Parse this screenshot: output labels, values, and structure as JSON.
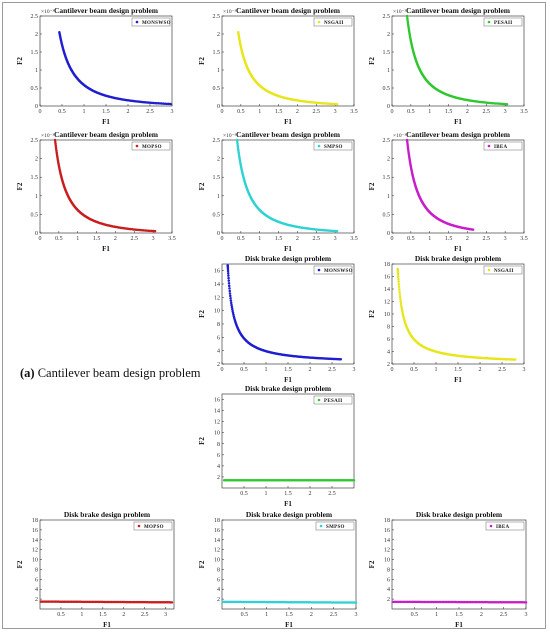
{
  "caption": {
    "label": "(a)",
    "text": " Cantilever beam design problem"
  },
  "chart_data": [
    {
      "id": "cb-monswso",
      "type": "scatter",
      "title": "Cantilever beam design problem",
      "xlabel": "F1",
      "ylabel": "F2",
      "xlim": [
        0,
        3
      ],
      "ylim": [
        0,
        0.0025
      ],
      "xticks": [
        "0",
        "0.5",
        "1",
        "1.5",
        "2",
        "2.5",
        "3"
      ],
      "yticks": [
        "0",
        "0.5",
        "1",
        "1.5",
        "2",
        "2.5"
      ],
      "y_exponent": "×10⁻³",
      "legend_position": "top-right",
      "series": [
        {
          "name": "MONSWSO",
          "color": "#1f1fd0",
          "curve": "hyperbolic",
          "x_range": [
            0.44,
            3.05
          ],
          "y_at_min": 0.00205,
          "y_at_max": 5e-05
        }
      ]
    },
    {
      "id": "cb-nsgaii",
      "type": "scatter",
      "title": "Cantilever beam design problem",
      "xlabel": "F1",
      "ylabel": "F2",
      "xlim": [
        0,
        3.5
      ],
      "ylim": [
        0,
        0.0025
      ],
      "xticks": [
        "0",
        "0.5",
        "1",
        "1.5",
        "2",
        "2.5",
        "3",
        "3.5"
      ],
      "yticks": [
        "0",
        "0.5",
        "1",
        "1.5",
        "2",
        "2.5"
      ],
      "y_exponent": "×10⁻³",
      "legend_position": "top-right",
      "series": [
        {
          "name": "NSGAII",
          "color": "#e6e61a",
          "curve": "hyperbolic",
          "x_range": [
            0.43,
            3.05
          ],
          "y_at_min": 0.00205,
          "y_at_max": 5e-05
        }
      ]
    },
    {
      "id": "cb-pesaii",
      "type": "scatter",
      "title": "Cantilever beam design problem",
      "xlabel": "F1",
      "ylabel": "F2",
      "xlim": [
        0,
        3.5
      ],
      "ylim": [
        0,
        0.0025
      ],
      "xticks": [
        "0",
        "0.5",
        "1",
        "1.5",
        "2",
        "2.5",
        "3",
        "3.5"
      ],
      "yticks": [
        "0",
        "0.5",
        "1",
        "1.5",
        "2",
        "2.5"
      ],
      "y_exponent": "×10⁻³",
      "legend_position": "top-right",
      "series": [
        {
          "name": "PESAII",
          "color": "#2fc82f",
          "curve": "hyperbolic",
          "x_range": [
            0.4,
            3.05
          ],
          "y_at_min": 0.0025,
          "y_at_max": 5e-05
        }
      ]
    },
    {
      "id": "cb-mopso",
      "type": "scatter",
      "title": "Cantilever beam design problem",
      "xlabel": "F1",
      "ylabel": "F2",
      "xlim": [
        0,
        3.5
      ],
      "ylim": [
        0,
        0.0025
      ],
      "xticks": [
        "0",
        "0.5",
        "1",
        "1.5",
        "2",
        "2.5",
        "3",
        "3.5"
      ],
      "yticks": [
        "0",
        "0.5",
        "1",
        "1.5",
        "2",
        "2.5"
      ],
      "y_exponent": "×10⁻³",
      "legend_position": "top-right",
      "series": [
        {
          "name": "MOPSO",
          "color": "#c81e1e",
          "curve": "hyperbolic",
          "x_range": [
            0.4,
            3.05
          ],
          "y_at_min": 0.0025,
          "y_at_max": 5e-05
        }
      ]
    },
    {
      "id": "cb-smpso",
      "type": "scatter",
      "title": "Cantilever beam design problem",
      "xlabel": "F1",
      "ylabel": "F2",
      "xlim": [
        0,
        3.5
      ],
      "ylim": [
        0,
        0.0025
      ],
      "xticks": [
        "0",
        "0.5",
        "1",
        "1.5",
        "2",
        "2.5",
        "3",
        "3.5"
      ],
      "yticks": [
        "0",
        "0.5",
        "1",
        "1.5",
        "2",
        "2.5"
      ],
      "y_exponent": "×10⁻³",
      "legend_position": "top-right",
      "series": [
        {
          "name": "SMPSO",
          "color": "#2fd2d2",
          "curve": "hyperbolic",
          "x_range": [
            0.4,
            3.05
          ],
          "y_at_min": 0.0025,
          "y_at_max": 5e-05
        }
      ]
    },
    {
      "id": "cb-ibea",
      "type": "scatter",
      "title": "Cantilever beam design problem",
      "xlabel": "F1",
      "ylabel": "F2",
      "xlim": [
        0,
        3.5
      ],
      "ylim": [
        0,
        0.0025
      ],
      "xticks": [
        "0",
        "0.5",
        "1",
        "1.5",
        "2",
        "2.5",
        "3",
        "3.5"
      ],
      "yticks": [
        "0",
        "0.5",
        "1",
        "1.5",
        "2",
        "2.5"
      ],
      "y_exponent": "×10⁻³",
      "legend_position": "top-right",
      "series": [
        {
          "name": "IBEA",
          "color": "#c81ec8",
          "curve": "hyperbolic",
          "x_range": [
            0.4,
            2.15
          ],
          "y_at_min": 0.0025,
          "y_at_max": 9e-05
        }
      ]
    },
    {
      "id": "db-monswso",
      "type": "scatter",
      "title": "Disk brake design problem",
      "xlabel": "F1",
      "ylabel": "F2",
      "xlim": [
        0,
        3
      ],
      "ylim": [
        2,
        17
      ],
      "xticks": [
        "0",
        "0.5",
        "1",
        "1.5",
        "2",
        "2.5",
        "3"
      ],
      "yticks": [
        "2",
        "4",
        "6",
        "8",
        "10",
        "12",
        "14",
        "16"
      ],
      "legend_position": "top-right",
      "series": [
        {
          "name": "MONSWSO",
          "color": "#1f1fd0",
          "curve": "disk",
          "x_range": [
            0.13,
            2.7
          ],
          "y_at_min": 16.8,
          "y_at_max": 2.1
        }
      ]
    },
    {
      "id": "db-nsgaii",
      "type": "scatter",
      "title": "Disk brake design problem",
      "xlabel": "F1",
      "ylabel": "F2",
      "xlim": [
        0,
        3
      ],
      "ylim": [
        2,
        18
      ],
      "xticks": [
        "0",
        "0.5",
        "1",
        "1.5",
        "2",
        "2.5",
        "3"
      ],
      "yticks": [
        "2",
        "4",
        "6",
        "8",
        "10",
        "12",
        "14",
        "16",
        "18"
      ],
      "legend_position": "top-right",
      "series": [
        {
          "name": "NSGAII",
          "color": "#e6e61a",
          "curve": "disk",
          "x_range": [
            0.13,
            2.8
          ],
          "y_at_min": 17.2,
          "y_at_max": 2.05
        }
      ]
    },
    {
      "id": "db-pesaii",
      "type": "scatter",
      "title": "Disk brake design problem",
      "xlabel": "F1",
      "ylabel": "F2",
      "xlim": [
        0,
        3
      ],
      "ylim": [
        0,
        17
      ],
      "xticks": [
        "0.5",
        "1",
        "1.5",
        "2",
        "2.5"
      ],
      "yticks": [
        "2",
        "4",
        "6",
        "8",
        "10",
        "12",
        "14",
        "16"
      ],
      "legend_position": "top-right",
      "series": [
        {
          "name": "PESAII",
          "color": "#2fc82f",
          "curve": "flat",
          "x_range": [
            0.05,
            3.0
          ],
          "y_at_min": 1.4,
          "y_at_max": 1.4
        }
      ]
    },
    {
      "id": "db-mopso",
      "type": "scatter",
      "title": "Disk brake design problem",
      "xlabel": "F1",
      "ylabel": "F2",
      "xlim": [
        0,
        3.2
      ],
      "ylim": [
        0,
        18
      ],
      "xticks": [
        "0.5",
        "1",
        "1.5",
        "2",
        "2.5",
        "3"
      ],
      "yticks": [
        "2",
        "4",
        "6",
        "8",
        "10",
        "12",
        "14",
        "16",
        "18"
      ],
      "legend_position": "top-right",
      "series": [
        {
          "name": "MOPSO",
          "color": "#c81e1e",
          "curve": "flat",
          "x_range": [
            0.02,
            3.15
          ],
          "y_at_min": 1.5,
          "y_at_max": 1.35
        }
      ]
    },
    {
      "id": "db-smpso",
      "type": "scatter",
      "title": "Disk brake design problem",
      "xlabel": "F1",
      "ylabel": "F2",
      "xlim": [
        0,
        3
      ],
      "ylim": [
        0,
        18
      ],
      "xticks": [
        "0.5",
        "1",
        "1.5",
        "2",
        "2.5",
        "3"
      ],
      "yticks": [
        "2",
        "4",
        "6",
        "8",
        "10",
        "12",
        "14",
        "16",
        "18"
      ],
      "legend_position": "top-right",
      "series": [
        {
          "name": "SMPSO",
          "color": "#2fd2d2",
          "curve": "flat",
          "x_range": [
            0.02,
            3.0
          ],
          "y_at_min": 1.45,
          "y_at_max": 1.3
        }
      ]
    },
    {
      "id": "db-ibea",
      "type": "scatter",
      "title": "Disk brake design problem",
      "xlabel": "F1",
      "ylabel": "F2",
      "xlim": [
        0,
        3
      ],
      "ylim": [
        0,
        18
      ],
      "xticks": [
        "0.5",
        "1",
        "1.5",
        "2",
        "2.5",
        "3"
      ],
      "yticks": [
        "2",
        "4",
        "6",
        "8",
        "10",
        "12",
        "14",
        "16",
        "18"
      ],
      "legend_position": "top-right",
      "series": [
        {
          "name": "IBEA",
          "color": "#c81ec8",
          "curve": "flat",
          "x_range": [
            0.02,
            3.0
          ],
          "y_at_min": 1.45,
          "y_at_max": 1.35
        }
      ]
    }
  ]
}
